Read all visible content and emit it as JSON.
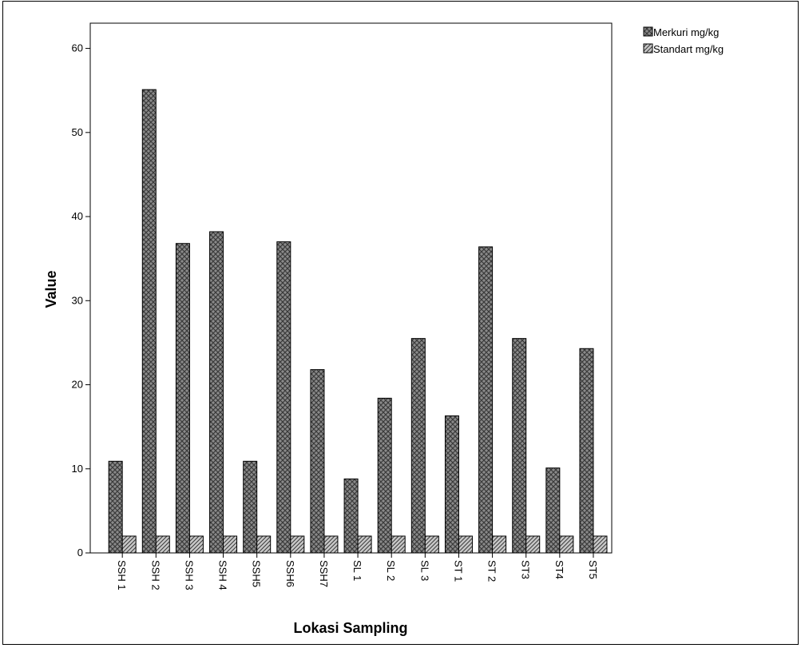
{
  "chart_data": {
    "type": "bar",
    "title": "",
    "xlabel": "Lokasi Sampling",
    "ylabel": "Value",
    "ylim": [
      0,
      63
    ],
    "yticks": [
      0,
      10,
      20,
      30,
      40,
      50,
      60
    ],
    "grid": false,
    "legend_position": "top-right, outside plot",
    "categories": [
      "SSH 1",
      "SSH 2",
      "SSH 3",
      "SSH 4",
      "SSH5",
      "SSH6",
      "SSH7",
      "SL 1",
      "SL 2",
      "SL 3",
      "ST 1",
      "ST 2",
      "ST3",
      "ST4",
      "ST5"
    ],
    "series": [
      {
        "name": "Merkuri mg/kg",
        "pattern": "crosshatch",
        "color": "#6e6e6e",
        "values": [
          10.9,
          55.1,
          36.8,
          38.2,
          10.9,
          37.0,
          21.8,
          8.8,
          18.4,
          25.5,
          16.3,
          36.4,
          25.5,
          10.1,
          24.3
        ]
      },
      {
        "name": "Standart mg/kg",
        "pattern": "diagonal",
        "color": "#9a9a9a",
        "values": [
          2,
          2,
          2,
          2,
          2,
          2,
          2,
          2,
          2,
          2,
          2,
          2,
          2,
          2,
          2
        ]
      }
    ]
  }
}
